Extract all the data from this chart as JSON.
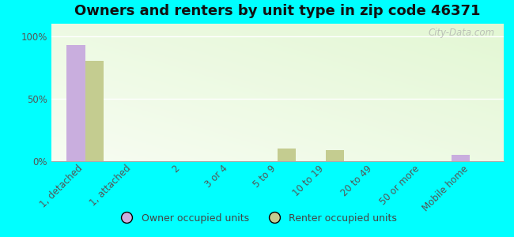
{
  "title": "Owners and renters by unit type in zip code 46371",
  "categories": [
    "1, detached",
    "1, attached",
    "2",
    "3 or 4",
    "5 to 9",
    "10 to 19",
    "20 to 49",
    "50 or more",
    "Mobile home"
  ],
  "owner_values": [
    93,
    0,
    0,
    0,
    0,
    0,
    0,
    0,
    5
  ],
  "renter_values": [
    80,
    0,
    0,
    0,
    10,
    9,
    0,
    0,
    0
  ],
  "owner_color": "#c9aede",
  "renter_color": "#c4cc90",
  "background_color": "#00ffff",
  "bar_width": 0.38,
  "ylim": [
    0,
    110
  ],
  "yticks": [
    0,
    50,
    100
  ],
  "ytick_labels": [
    "0%",
    "50%",
    "100%"
  ],
  "watermark": "City-Data.com",
  "legend_owner": "Owner occupied units",
  "legend_renter": "Renter occupied units",
  "title_fontsize": 13,
  "tick_fontsize": 8.5,
  "legend_fontsize": 9
}
